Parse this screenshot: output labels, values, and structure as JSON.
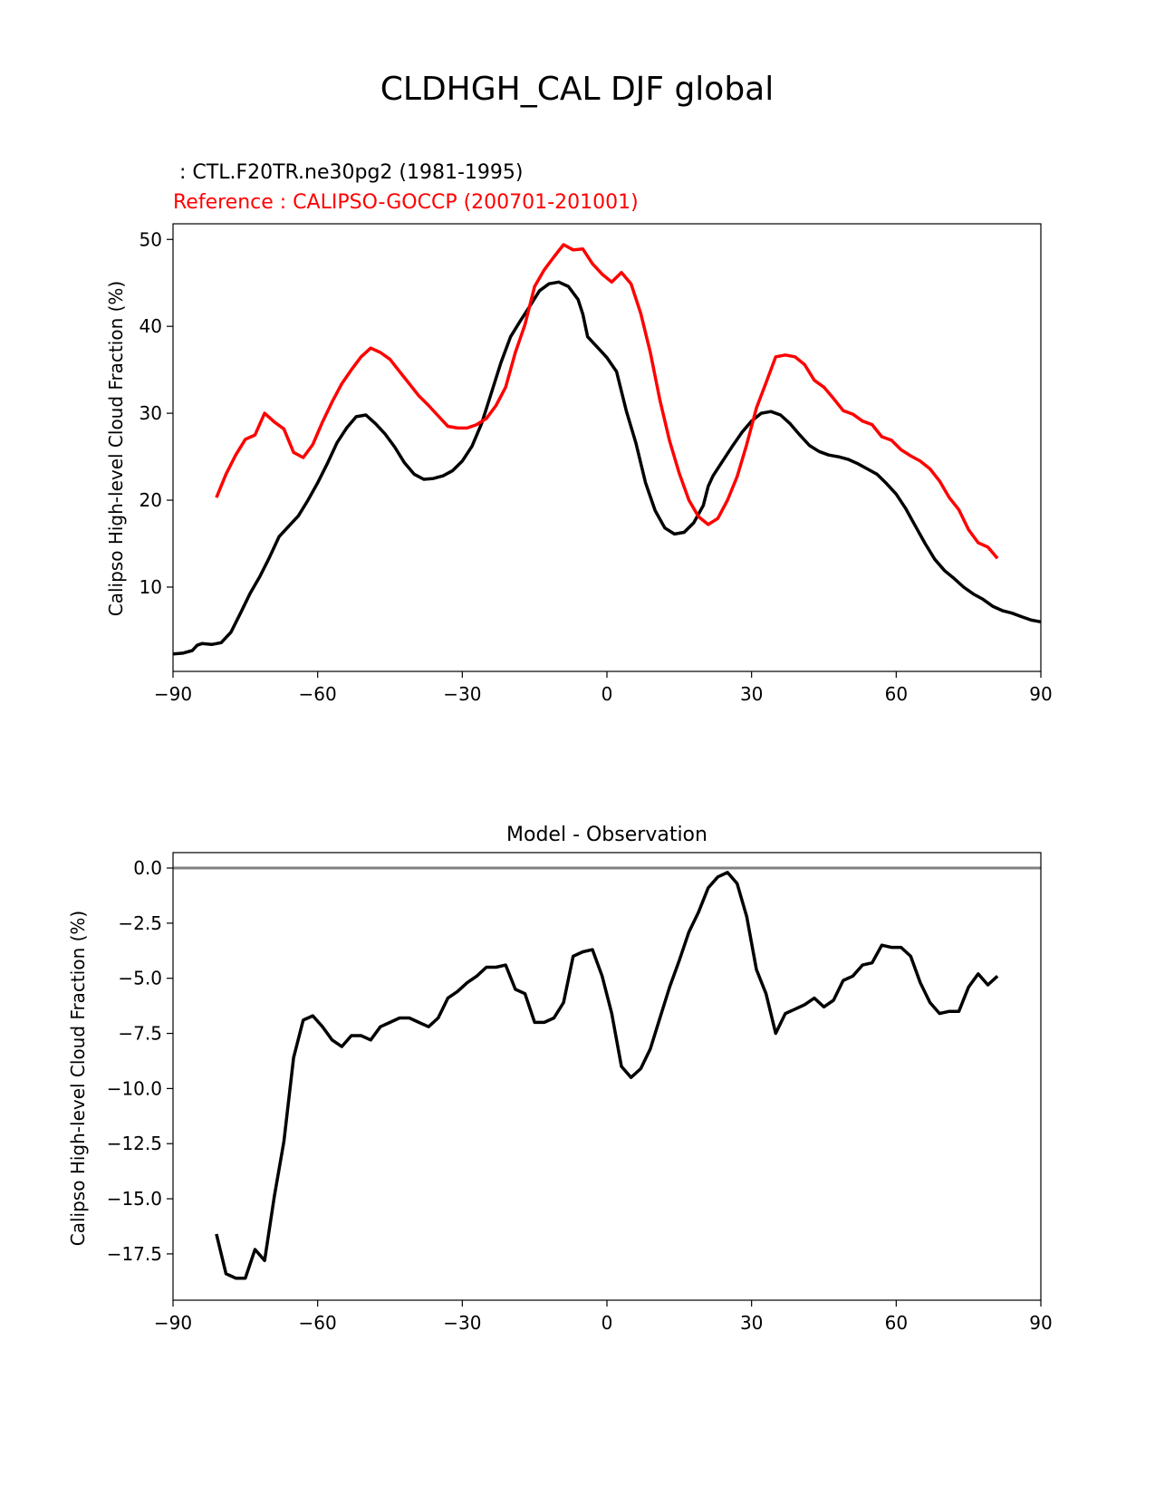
{
  "figure": {
    "title": "CLDHGH_CAL DJF global"
  },
  "colors": {
    "model": "#000000",
    "reference": "#ff0000",
    "zero_line": "#808080",
    "axes": "#000000",
    "background": "#ffffff"
  },
  "chart_data": [
    {
      "type": "line",
      "id": "top",
      "title": "",
      "test_label": " : CTL.F20TR.ne30pg2 (1981-1995)",
      "ref_label": "Reference : CALIPSO-GOCCP (200701-201001)",
      "xlabel": "",
      "ylabel": "Calipso High-level Cloud Fraction (%)",
      "xlim": [
        -90,
        90
      ],
      "ylim": [
        0.3,
        51.8
      ],
      "xticks": [
        -90,
        -60,
        -30,
        0,
        30,
        60,
        90
      ],
      "xtick_labels": [
        "−90",
        "−60",
        "−30",
        "0",
        "30",
        "60",
        "90"
      ],
      "yticks": [
        10,
        20,
        30,
        40,
        50
      ],
      "ytick_labels": [
        "10",
        "20",
        "30",
        "40",
        "50"
      ],
      "grid": false,
      "series": [
        {
          "name": "CTL.F20TR.ne30pg2 (1981-1995)",
          "color": "#000000",
          "x": [
            -90,
            -88,
            -86,
            -85,
            -84,
            -82,
            -80,
            -78,
            -76,
            -74,
            -72,
            -70,
            -68,
            -66,
            -64,
            -62,
            -60,
            -58,
            -56,
            -54,
            -52,
            -50,
            -48,
            -46,
            -44,
            -42,
            -40,
            -38,
            -36,
            -34,
            -32,
            -30,
            -28,
            -26,
            -24,
            -22,
            -20,
            -18,
            -16,
            -14,
            -12,
            -10,
            -8,
            -6,
            -5,
            -4,
            -2,
            0,
            2,
            4,
            6,
            8,
            10,
            12,
            14,
            16,
            18,
            20,
            21,
            22,
            24,
            26,
            28,
            30,
            32,
            34,
            36,
            38,
            40,
            42,
            44,
            46,
            48,
            50,
            52,
            54,
            56,
            58,
            60,
            62,
            64,
            66,
            68,
            70,
            72,
            74,
            76,
            78,
            80,
            82,
            84,
            86,
            88,
            90
          ],
          "y": [
            2.3,
            2.4,
            2.7,
            3.3,
            3.5,
            3.4,
            3.6,
            4.8,
            7.0,
            9.3,
            11.2,
            13.4,
            15.8,
            17.0,
            18.2,
            20.0,
            22.0,
            24.2,
            26.6,
            28.3,
            29.6,
            29.8,
            28.8,
            27.6,
            26.1,
            24.3,
            23.0,
            22.4,
            22.5,
            22.8,
            23.4,
            24.5,
            26.2,
            28.8,
            32.3,
            35.8,
            38.8,
            40.6,
            42.3,
            44.1,
            44.9,
            45.1,
            44.6,
            43.1,
            41.4,
            38.8,
            37.6,
            36.4,
            34.8,
            30.3,
            26.6,
            22.0,
            18.8,
            16.8,
            16.1,
            16.3,
            17.4,
            19.4,
            21.6,
            22.8,
            24.5,
            26.2,
            27.8,
            29.1,
            30.0,
            30.2,
            29.8,
            28.8,
            27.5,
            26.3,
            25.6,
            25.2,
            25.0,
            24.7,
            24.2,
            23.6,
            23.0,
            21.9,
            20.7,
            19.0,
            17.0,
            15.0,
            13.2,
            11.9,
            11.0,
            10.0,
            9.2,
            8.6,
            7.8,
            7.3,
            7.0,
            6.6,
            6.2,
            6.0
          ]
        },
        {
          "name": "CALIPSO-GOCCP (200701-201001)",
          "color": "#ff0000",
          "x": [
            -81,
            -79,
            -77,
            -75,
            -73,
            -71,
            -69,
            -67,
            -65,
            -63,
            -61,
            -59,
            -57,
            -55,
            -53,
            -51,
            -49,
            -47,
            -45,
            -43,
            -41,
            -39,
            -37,
            -35,
            -33,
            -31,
            -29,
            -27,
            -25,
            -23,
            -21,
            -19,
            -17,
            -15,
            -13,
            -11,
            -9,
            -7,
            -5,
            -3,
            -1,
            1,
            3,
            5,
            7,
            9,
            11,
            13,
            15,
            17,
            19,
            21,
            23,
            25,
            27,
            29,
            31,
            33,
            35,
            37,
            39,
            41,
            43,
            45,
            47,
            49,
            51,
            53,
            55,
            57,
            59,
            61,
            63,
            65,
            67,
            69,
            71,
            73,
            75,
            77,
            79,
            81
          ],
          "y": [
            20.3,
            23.0,
            25.2,
            27.0,
            27.5,
            30.0,
            29.0,
            28.2,
            25.5,
            24.9,
            26.4,
            29.0,
            31.3,
            33.4,
            35.0,
            36.5,
            37.5,
            37.0,
            36.2,
            34.8,
            33.4,
            32.0,
            30.9,
            29.7,
            28.5,
            28.3,
            28.3,
            28.7,
            29.4,
            30.9,
            33.0,
            37.0,
            40.2,
            44.6,
            46.5,
            48.0,
            49.4,
            48.8,
            48.9,
            47.2,
            46.0,
            45.1,
            46.2,
            44.9,
            41.5,
            37.0,
            31.5,
            26.8,
            23.1,
            20.0,
            18.1,
            17.2,
            17.9,
            20.0,
            22.7,
            26.4,
            30.6,
            33.5,
            36.5,
            36.7,
            36.5,
            35.6,
            33.8,
            33.0,
            31.7,
            30.3,
            29.9,
            29.1,
            28.7,
            27.3,
            26.9,
            25.8,
            25.1,
            24.5,
            23.6,
            22.2,
            20.3,
            18.9,
            16.6,
            15.1,
            14.6,
            13.3
          ]
        }
      ]
    },
    {
      "type": "line",
      "id": "bottom",
      "title": "Model - Observation",
      "xlabel": "",
      "ylabel": "Calipso High-level Cloud Fraction (%)",
      "xlim": [
        -90,
        90
      ],
      "ylim": [
        -19.6,
        0.7
      ],
      "xticks": [
        -90,
        -60,
        -30,
        0,
        30,
        60,
        90
      ],
      "xtick_labels": [
        "−90",
        "−60",
        "−30",
        "0",
        "30",
        "60",
        "90"
      ],
      "yticks": [
        0.0,
        -2.5,
        -5.0,
        -7.5,
        -10.0,
        -12.5,
        -15.0,
        -17.5
      ],
      "ytick_labels": [
        "0.0",
        "−2.5",
        "−5.0",
        "−7.5",
        "−10.0",
        "−12.5",
        "−15.0",
        "−17.5"
      ],
      "grid": false,
      "zero_line": 0,
      "series": [
        {
          "name": "Model - Observation",
          "color": "#000000",
          "x": [
            -81,
            -79,
            -77,
            -75,
            -73,
            -71,
            -69,
            -67,
            -65,
            -63,
            -61,
            -59,
            -57,
            -55,
            -53,
            -51,
            -49,
            -47,
            -45,
            -43,
            -41,
            -39,
            -37,
            -35,
            -33,
            -31,
            -29,
            -27,
            -25,
            -23,
            -21,
            -19,
            -17,
            -15,
            -13,
            -11,
            -9,
            -7,
            -5,
            -3,
            -1,
            1,
            3,
            5,
            7,
            9,
            11,
            13,
            15,
            17,
            19,
            21,
            23,
            25,
            27,
            29,
            31,
            33,
            35,
            37,
            39,
            41,
            43,
            45,
            47,
            49,
            51,
            53,
            55,
            57,
            59,
            61,
            63,
            65,
            67,
            69,
            71,
            73,
            75,
            77,
            79,
            81
          ],
          "y": [
            -16.6,
            -18.4,
            -18.6,
            -18.6,
            -17.3,
            -17.8,
            -14.9,
            -12.4,
            -8.6,
            -6.9,
            -6.7,
            -7.2,
            -7.8,
            -8.1,
            -7.6,
            -7.6,
            -7.8,
            -7.2,
            -7.0,
            -6.8,
            -6.8,
            -7.0,
            -7.2,
            -6.8,
            -5.9,
            -5.6,
            -5.2,
            -4.9,
            -4.5,
            -4.5,
            -4.4,
            -5.5,
            -5.7,
            -7.0,
            -7.0,
            -6.8,
            -6.1,
            -4.0,
            -3.8,
            -3.7,
            -4.9,
            -6.6,
            -9.0,
            -9.5,
            -9.1,
            -8.2,
            -6.8,
            -5.4,
            -4.2,
            -2.9,
            -2.0,
            -0.9,
            -0.4,
            -0.2,
            -0.7,
            -2.2,
            -4.6,
            -5.7,
            -7.5,
            -6.6,
            -6.4,
            -6.2,
            -5.9,
            -6.3,
            -6.0,
            -5.1,
            -4.9,
            -4.4,
            -4.3,
            -3.5,
            -3.6,
            -3.6,
            -4.0,
            -5.2,
            -6.1,
            -6.6,
            -6.5,
            -6.5,
            -5.4,
            -4.8,
            -5.3,
            -4.9
          ]
        }
      ]
    }
  ]
}
